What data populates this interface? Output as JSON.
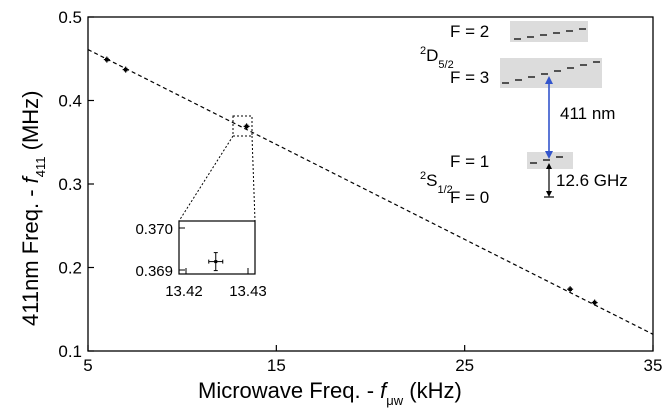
{
  "chart_data": {
    "type": "scatter",
    "title": "",
    "xlabel": {
      "main": "Microwave Freq. - ",
      "symbol": "f",
      "sub": "μw",
      "unit": " (kHz)"
    },
    "ylabel": {
      "main": "411nm Freq. - ",
      "symbol": "f",
      "sub": "411",
      "unit": " (MHz)"
    },
    "xlim": [
      5,
      35
    ],
    "ylim": [
      0.1,
      0.5
    ],
    "xticks": [
      "5",
      "15",
      "25",
      "35"
    ],
    "yticks": [
      "0.1",
      "0.2",
      "0.3",
      "0.4",
      "0.5"
    ],
    "grid": false,
    "points": [
      {
        "x": 6.0,
        "y": 0.449
      },
      {
        "x": 7.0,
        "y": 0.437
      },
      {
        "x": 13.42,
        "y": 0.369
      },
      {
        "x": 30.6,
        "y": 0.174
      },
      {
        "x": 31.9,
        "y": 0.158
      }
    ],
    "fit_line": {
      "x": [
        5,
        35
      ],
      "y": [
        0.461,
        0.12
      ]
    },
    "inset": {
      "xticks": [
        "13.42",
        "13.43"
      ],
      "yticks": [
        "0.370",
        "0.369"
      ],
      "point": {
        "x": 13.4248,
        "y": 0.3692
      }
    },
    "level_diagram": {
      "d_state": "D",
      "d_sup": "2",
      "d_sub": "5/2",
      "d_f2": "F = 2",
      "d_f3": "F = 3",
      "s_state": "S",
      "s_sup": "2",
      "s_sub": "1/2",
      "s_f1": "F = 1",
      "s_f0": "F = 0",
      "optical_label": "411 nm",
      "hyperfine_label": "12.6 GHz",
      "colors": {
        "arrow": "#3355cc",
        "highlight": "#dcdcdc"
      }
    }
  }
}
